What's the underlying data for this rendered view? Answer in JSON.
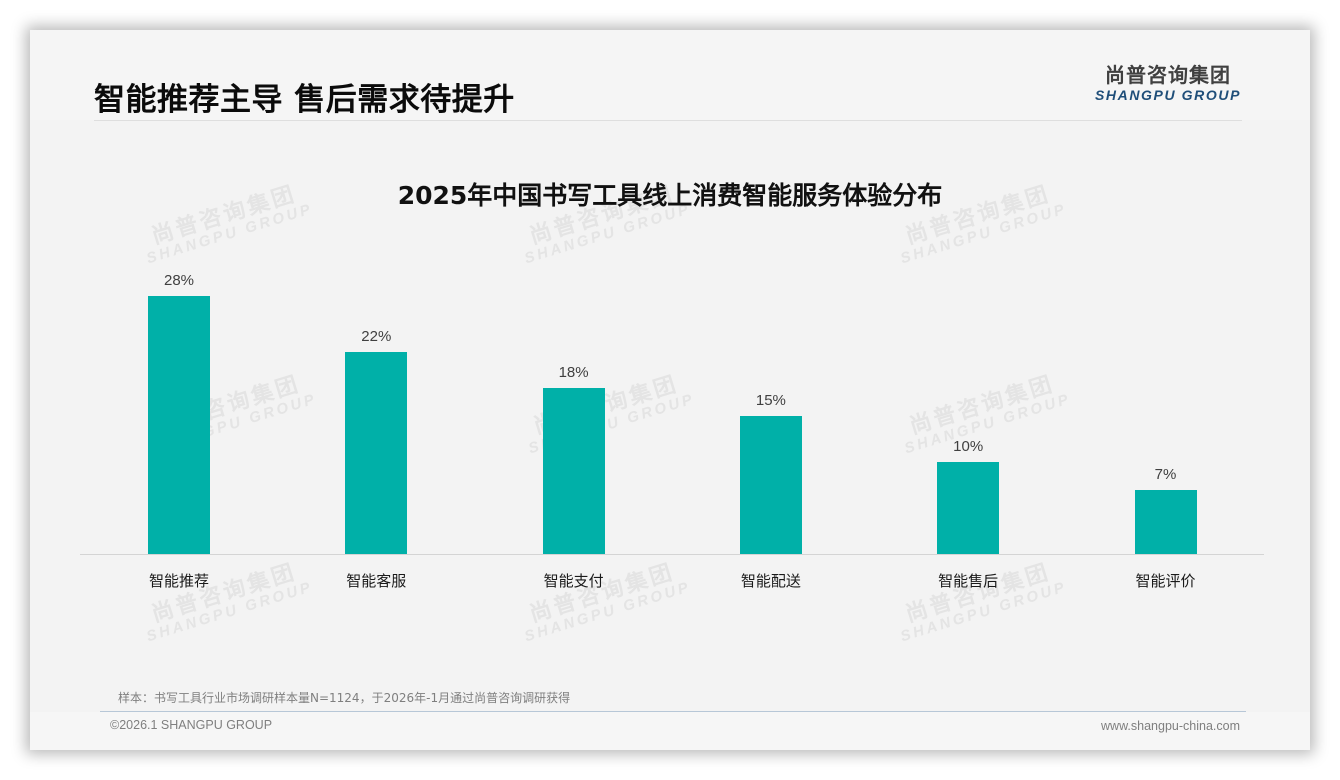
{
  "header": {
    "title": "智能推荐主导 售后需求待提升",
    "logo_cn": "尚普咨询集团",
    "logo_en": "SHANGPU GROUP"
  },
  "watermark": {
    "cn": "尚普咨询集团",
    "en": "SHANGPU GROUP"
  },
  "chart_data": {
    "type": "bar",
    "title": "2025年中国书写工具线上消费智能服务体验分布",
    "categories": [
      "智能推荐",
      "智能客服",
      "智能支付",
      "智能配送",
      "智能售后",
      "智能评价"
    ],
    "values": [
      28,
      22,
      18,
      15,
      10,
      7
    ],
    "value_labels": [
      "28%",
      "22%",
      "18%",
      "15%",
      "10%",
      "7%"
    ],
    "unit": "%",
    "xlabel": "",
    "ylabel": "",
    "ylim": [
      0,
      30
    ],
    "grid": false,
    "legend": null,
    "bar_color": "#00b0a8"
  },
  "footer": {
    "note": "样本：书写工具行业市场调研样本量N=1124，于2026年-1月通过尚普咨询调研获得",
    "copyright": "©2026.1 SHANGPU GROUP",
    "website": "www.shangpu-china.com"
  }
}
